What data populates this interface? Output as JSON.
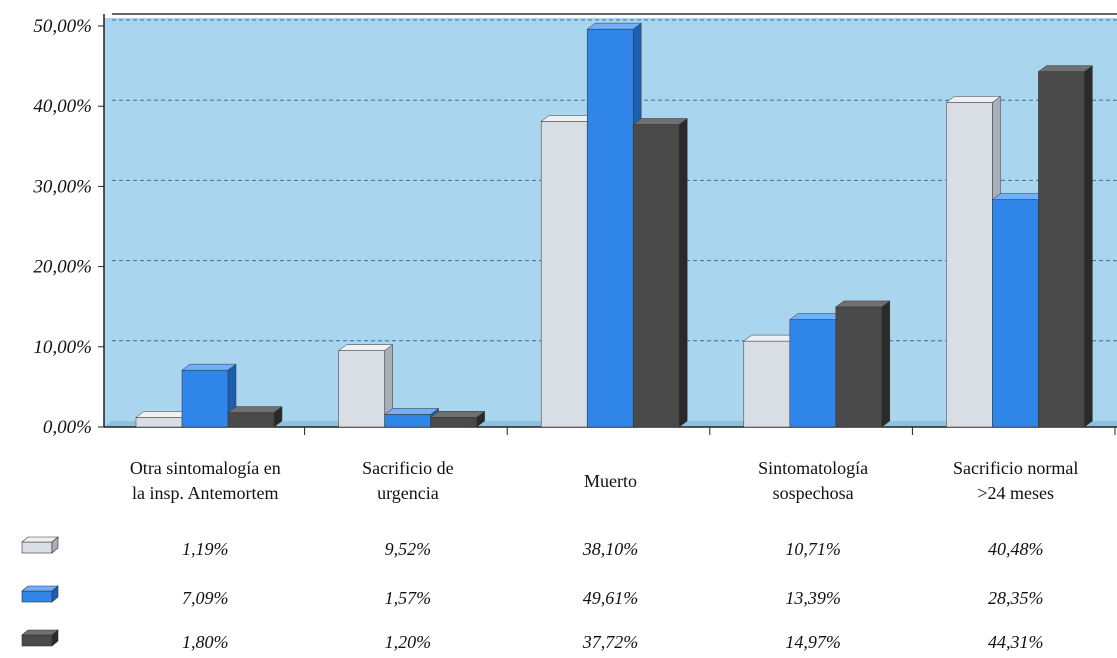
{
  "chart_data": {
    "type": "bar",
    "categories": [
      [
        "Otra sintomalogía en",
        "la insp. Antemortem"
      ],
      [
        "Sacrificio de",
        "urgencia"
      ],
      [
        "Muerto"
      ],
      [
        "Sintomatología",
        "sospechosa"
      ],
      [
        "Sacrificio normal",
        ">24 meses"
      ]
    ],
    "series": [
      {
        "values": [
          1.19,
          9.52,
          38.1,
          10.71,
          40.48
        ],
        "labels": [
          "1,19%",
          "9,52%",
          "38,10%",
          "10,71%",
          "40,48%"
        ]
      },
      {
        "values": [
          7.09,
          1.57,
          49.61,
          13.39,
          28.35
        ],
        "labels": [
          "7,09%",
          "1,57%",
          "49,61%",
          "13,39%",
          "28,35%"
        ]
      },
      {
        "values": [
          1.8,
          1.2,
          37.72,
          14.97,
          44.31
        ],
        "labels": [
          "1,80%",
          "1,20%",
          "37,72%",
          "14,97%",
          "44,31%"
        ]
      }
    ],
    "yticks": [
      "0,00%",
      "10,00%",
      "20,00%",
      "30,00%",
      "40,00%",
      "50,00%"
    ],
    "ylim": [
      0,
      50
    ],
    "grid": true,
    "legend": "data-table-below",
    "colors": {
      "series": [
        "#d9dde4",
        "#2f86e8",
        "#4a4a4a"
      ],
      "series_top": [
        "#eef0f3",
        "#6fb0ff",
        "#707070"
      ],
      "series_side": [
        "#a9afb8",
        "#1c5fb0",
        "#2a2a2a"
      ],
      "plot_bg": "#a9d6ee",
      "grid": "#3a6fa0"
    }
  }
}
